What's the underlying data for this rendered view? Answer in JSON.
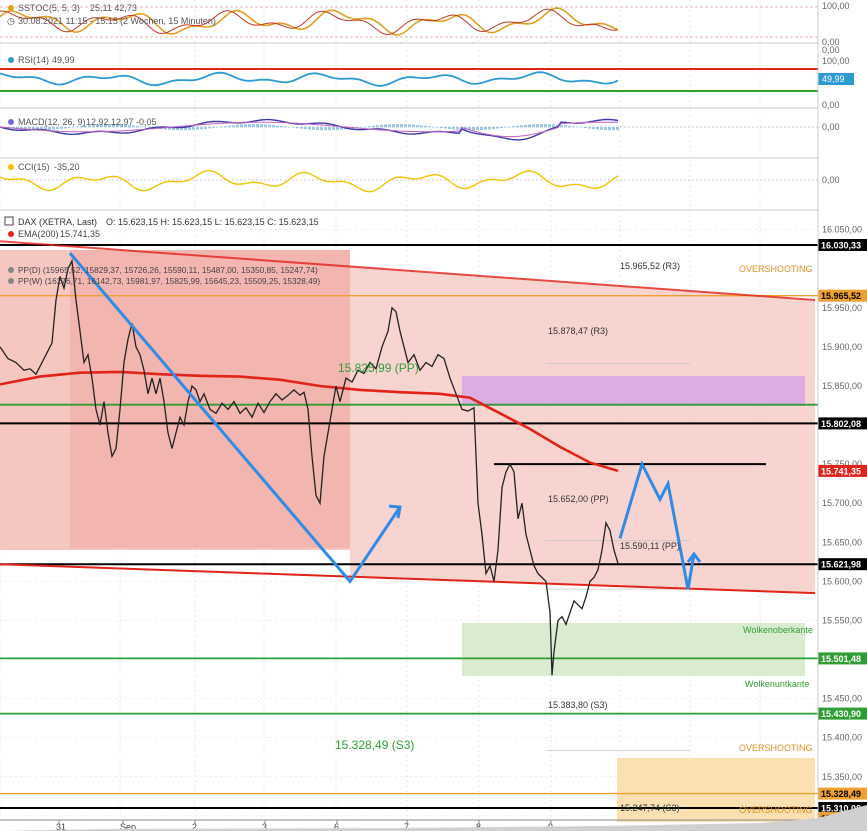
{
  "colors": {
    "red": "#e2231a",
    "green": "#2e9e34",
    "blue": "#2f8be6",
    "orange": "#f0a030",
    "black": "#000000",
    "grid": "#dcdcdc",
    "zone_red": "#f6c6c1",
    "zone_purple": "#d8a8e4",
    "zone_green": "#d9ecd0",
    "zone_orange": "#fbe0b2"
  },
  "indicators": {
    "sstoch": {
      "label": "SSTOC(5, 5, 3)",
      "values": "25,11  42,73",
      "date_range": "30.08.2021 11:15 - 15:15",
      "period": "(2 Wochen, 15 Minuten)",
      "axis_top": "100,00",
      "axis_bottom": "0,00",
      "axis_extra": "0,00"
    },
    "rsi": {
      "label": "RSI(14)",
      "value": "49,99",
      "axis_top": "100,00",
      "axis_bottom": "0,00",
      "badge": "49,99"
    },
    "macd": {
      "label": "MACD(12, 26, 9)",
      "values": "12,92  12,97  -0,05",
      "axis_zero": "0,00"
    },
    "cci": {
      "label": "CCI(15)",
      "value": "-35,20",
      "axis_zero": "0,00"
    }
  },
  "main_chart": {
    "instrument": "DAX (XETRA, Last)",
    "ohlc": "O: 15.623,15   H: 15.623,15   L: 15.623,15   C: 15.623,15",
    "ema_label": "EMA(200)",
    "ema_value": "15.741,35",
    "pp_daily": "PP(D)  (15965,52, 15829,37, 15726,26, 15590,11, 15487,00, 15350,85, 15247,74)",
    "pp_weekly": "PP(W)  (16276,71, 16142,73, 15981,97, 15825,99, 15645,23, 15509,25, 15328,49)"
  },
  "level_labels": {
    "r3_top": "15.965,52 (R3)",
    "r3_mid": "15.878,47 (R3)",
    "pp_weekly_big": "15.825,99 (PP)",
    "pp_652": "15.652,00 (PP)",
    "pp_590": "15.590,11 (PP)",
    "s3_383": "15.383,80 (S3)",
    "s3_328": "15.328,49 (S3)",
    "s3_247": "15.247,74 (S3)",
    "overshooting_top": "OVERSHOOTING",
    "overshooting_mid": "OVERSHOOTING",
    "overshooting_bottom": "OVERSHOOTING",
    "wolkenoberkante": "Wolkenoberkante",
    "wolkenuntkante": "Wolkenuntkante"
  },
  "price_badges": [
    {
      "text": "16.030,33",
      "bg": "#000000",
      "fg": "#ffffff"
    },
    {
      "text": "15.965,52",
      "bg": "#f0a030",
      "fg": "#000000"
    },
    {
      "text": "15.802,08",
      "bg": "#000000",
      "fg": "#ffffff"
    },
    {
      "text": "15.741,35",
      "bg": "#e2231a",
      "fg": "#ffffff"
    },
    {
      "text": "15.621,98",
      "bg": "#000000",
      "fg": "#ffffff"
    },
    {
      "text": "15.501,48",
      "bg": "#2e9e34",
      "fg": "#ffffff"
    },
    {
      "text": "15.430,90",
      "bg": "#2e9e34",
      "fg": "#ffffff"
    },
    {
      "text": "15.328,49",
      "bg": "#f0a030",
      "fg": "#000000"
    },
    {
      "text": "15.310,08",
      "bg": "#000000",
      "fg": "#ffffff"
    },
    {
      "text": "15.247,74",
      "bg": "#f0a030",
      "fg": "#000000"
    }
  ],
  "chart_data": {
    "type": "line",
    "title": "DAX (XETRA, Last)",
    "interval": "15 Minuten",
    "x_tick_labels": [
      "31",
      "Sep",
      "2",
      "3",
      "6",
      "7",
      "8",
      "9"
    ],
    "y_axis": {
      "ylim": [
        15200,
        16050
      ],
      "tick_labels": [
        "16.050,00",
        "15.950,00",
        "15.900,00",
        "15.850,00",
        "15.750,00",
        "15.700,00",
        "15.650,00",
        "15.600,00",
        "15.550,00",
        "15.450,00",
        "15.400,00",
        "15.350,00",
        "15.300,00",
        "15.250,00"
      ],
      "tick_values": [
        16050,
        15950,
        15900,
        15850,
        15750,
        15700,
        15650,
        15600,
        15550,
        15450,
        15400,
        15350,
        15300,
        15250
      ]
    },
    "price_series": [
      [
        0,
        15900
      ],
      [
        8,
        15885
      ],
      [
        16,
        15880
      ],
      [
        24,
        15870
      ],
      [
        30,
        15872
      ],
      [
        36,
        15865
      ],
      [
        42,
        15880
      ],
      [
        48,
        15895
      ],
      [
        52,
        15905
      ],
      [
        56,
        15960
      ],
      [
        60,
        15990
      ],
      [
        64,
        15975
      ],
      [
        68,
        16000
      ],
      [
        72,
        16010
      ],
      [
        76,
        15960
      ],
      [
        80,
        15920
      ],
      [
        84,
        15880
      ],
      [
        88,
        15890
      ],
      [
        92,
        15860
      ],
      [
        96,
        15820
      ],
      [
        100,
        15800
      ],
      [
        104,
        15830
      ],
      [
        108,
        15790
      ],
      [
        112,
        15760
      ],
      [
        116,
        15770
      ],
      [
        120,
        15820
      ],
      [
        124,
        15880
      ],
      [
        128,
        15910
      ],
      [
        132,
        15930
      ],
      [
        136,
        15900
      ],
      [
        140,
        15890
      ],
      [
        144,
        15870
      ],
      [
        148,
        15840
      ],
      [
        152,
        15860
      ],
      [
        156,
        15840
      ],
      [
        160,
        15860
      ],
      [
        164,
        15830
      ],
      [
        168,
        15790
      ],
      [
        172,
        15770
      ],
      [
        176,
        15790
      ],
      [
        180,
        15810
      ],
      [
        184,
        15800
      ],
      [
        188,
        15830
      ],
      [
        192,
        15850
      ],
      [
        196,
        15845
      ],
      [
        200,
        15830
      ],
      [
        204,
        15840
      ],
      [
        210,
        15820
      ],
      [
        216,
        15815
      ],
      [
        222,
        15828
      ],
      [
        228,
        15820
      ],
      [
        234,
        15830
      ],
      [
        240,
        15815
      ],
      [
        246,
        15822
      ],
      [
        252,
        15810
      ],
      [
        258,
        15828
      ],
      [
        264,
        15816
      ],
      [
        270,
        15830
      ],
      [
        276,
        15840
      ],
      [
        282,
        15832
      ],
      [
        288,
        15838
      ],
      [
        294,
        15845
      ],
      [
        300,
        15838
      ],
      [
        304,
        15842
      ],
      [
        308,
        15820
      ],
      [
        312,
        15760
      ],
      [
        316,
        15710
      ],
      [
        320,
        15700
      ],
      [
        324,
        15760
      ],
      [
        328,
        15790
      ],
      [
        332,
        15820
      ],
      [
        336,
        15850
      ],
      [
        340,
        15830
      ],
      [
        346,
        15860
      ],
      [
        352,
        15855
      ],
      [
        358,
        15870
      ],
      [
        364,
        15866
      ],
      [
        370,
        15880
      ],
      [
        376,
        15872
      ],
      [
        382,
        15900
      ],
      [
        388,
        15920
      ],
      [
        392,
        15950
      ],
      [
        396,
        15945
      ],
      [
        400,
        15920
      ],
      [
        404,
        15900
      ],
      [
        408,
        15880
      ],
      [
        414,
        15890
      ],
      [
        420,
        15870
      ],
      [
        426,
        15880
      ],
      [
        432,
        15875
      ],
      [
        438,
        15890
      ],
      [
        444,
        15885
      ],
      [
        450,
        15860
      ],
      [
        456,
        15840
      ],
      [
        462,
        15820
      ],
      [
        468,
        15818
      ],
      [
        474,
        15822
      ],
      [
        478,
        15700
      ],
      [
        482,
        15660
      ],
      [
        486,
        15610
      ],
      [
        490,
        15620
      ],
      [
        494,
        15600
      ],
      [
        498,
        15640
      ],
      [
        502,
        15720
      ],
      [
        506,
        15740
      ],
      [
        510,
        15750
      ],
      [
        514,
        15740
      ],
      [
        518,
        15680
      ],
      [
        522,
        15700
      ],
      [
        526,
        15660
      ],
      [
        530,
        15640
      ],
      [
        534,
        15620
      ],
      [
        538,
        15610
      ],
      [
        542,
        15605
      ],
      [
        546,
        15600
      ],
      [
        550,
        15560
      ],
      [
        552,
        15480
      ],
      [
        554,
        15510
      ],
      [
        558,
        15550
      ],
      [
        562,
        15555
      ],
      [
        566,
        15545
      ],
      [
        570,
        15560
      ],
      [
        574,
        15575
      ],
      [
        578,
        15570
      ],
      [
        582,
        15565
      ],
      [
        586,
        15580
      ],
      [
        590,
        15600
      ],
      [
        594,
        15605
      ],
      [
        598,
        15615
      ],
      [
        602,
        15640
      ],
      [
        606,
        15675
      ],
      [
        610,
        15665
      ],
      [
        614,
        15640
      ],
      [
        618,
        15623
      ]
    ],
    "ema200_series": [
      [
        0,
        15852
      ],
      [
        40,
        15862
      ],
      [
        80,
        15867
      ],
      [
        120,
        15868
      ],
      [
        160,
        15865
      ],
      [
        200,
        15863
      ],
      [
        240,
        15862
      ],
      [
        280,
        15858
      ],
      [
        320,
        15850
      ],
      [
        360,
        15845
      ],
      [
        400,
        15842
      ],
      [
        440,
        15840
      ],
      [
        470,
        15835
      ],
      [
        500,
        15815
      ],
      [
        530,
        15795
      ],
      [
        560,
        15772
      ],
      [
        590,
        15752
      ],
      [
        618,
        15741.35
      ]
    ],
    "levels": [
      {
        "label": "16.030,33",
        "value": 16030.33,
        "color": "#000000"
      },
      {
        "label": "15.965,52 (R3)",
        "value": 15965.52,
        "color": "#f0a030"
      },
      {
        "label": "15.878,47 (R3)",
        "value": 15878.47,
        "color": "#c8c8c8"
      },
      {
        "label": "15.825,99 (PP)",
        "value": 15825.99,
        "color": "#2e9e34"
      },
      {
        "label": "15.802,08",
        "value": 15802.08,
        "color": "#000000"
      },
      {
        "label": "15.741,35",
        "value": 15741.35,
        "color": "#e2231a"
      },
      {
        "label": "15.652,00 (PP)",
        "value": 15652.0,
        "color": "#c8c8c8"
      },
      {
        "label": "15.621,98",
        "value": 15621.98,
        "color": "#000000"
      },
      {
        "label": "15.590,11 (PP)",
        "value": 15590.11,
        "color": "#c8c8c8"
      },
      {
        "label": "15.501,48",
        "value": 15501.48,
        "color": "#2e9e34"
      },
      {
        "label": "15.430,90",
        "value": 15430.9,
        "color": "#2e9e34"
      },
      {
        "label": "15.383,80 (S3)",
        "value": 15383.8,
        "color": "#c8c8c8"
      },
      {
        "label": "15.328,49 (S3)",
        "value": 15328.49,
        "color": "#f0a030"
      },
      {
        "label": "15.310,08",
        "value": 15310.08,
        "color": "#000000"
      },
      {
        "label": "15.247,74 (S3)",
        "value": 15247.74,
        "color": "#f0a030"
      }
    ],
    "channel": {
      "upper": [
        [
          0,
          16035
        ],
        [
          815,
          15960
        ]
      ],
      "lower": [
        [
          0,
          15622
        ],
        [
          815,
          15585
        ]
      ]
    },
    "forecast_arrows": {
      "blue_decline": [
        [
          70,
          16020
        ],
        [
          350,
          15600
        ],
        [
          400,
          15695
        ]
      ],
      "blue_projection": [
        [
          620,
          15655
        ],
        [
          642,
          15750
        ],
        [
          660,
          15705
        ],
        [
          668,
          15725
        ],
        [
          688,
          15590
        ],
        [
          694,
          15635
        ]
      ]
    },
    "resistance_segment": {
      "value": 15750,
      "x_range": [
        494,
        766
      ]
    },
    "grid": true
  }
}
